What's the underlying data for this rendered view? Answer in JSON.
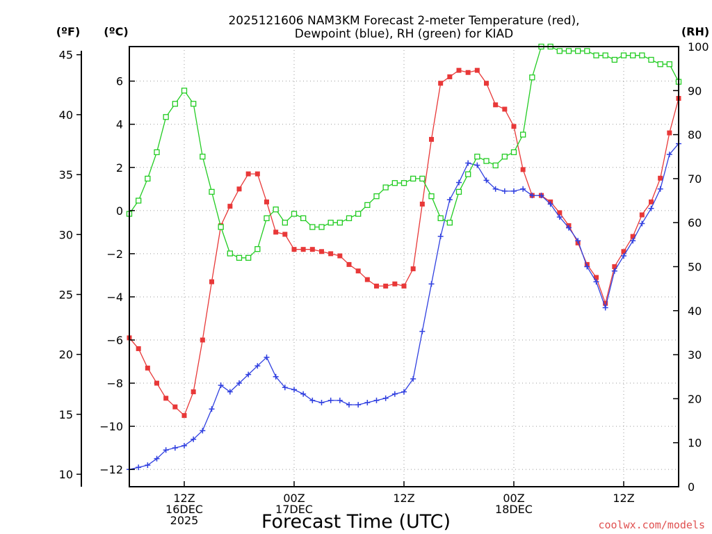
{
  "chart_data": {
    "type": "line",
    "title_line1": "2025121606 NAM3KM Forecast 2-meter Temperature (red),",
    "title_line2": "Dewpoint (blue), RH (green) for KIAD",
    "xlabel": "Forecast Time (UTC)",
    "credit": "coolwx.com/models",
    "unit_f": "(ºF)",
    "unit_c": "(ºC)",
    "unit_rh": "(RH)",
    "x_hours_start": 6,
    "x_hours_end": 66,
    "c_range": [
      -12.8,
      7.6
    ],
    "f_ticks": [
      10,
      15,
      20,
      25,
      30,
      35,
      40,
      45
    ],
    "c_ticks": [
      -12,
      -10,
      -8,
      -6,
      -4,
      -2,
      0,
      2,
      4,
      6
    ],
    "rh_ticks": [
      0,
      10,
      20,
      30,
      40,
      50,
      60,
      70,
      80,
      90,
      100
    ],
    "c_tick_labels": [
      "−12",
      "−10",
      "−8",
      "−6",
      "−4",
      "−2",
      "0",
      "2",
      "4",
      "6"
    ],
    "x_ticks": [
      {
        "hour": 12,
        "lines": [
          "12Z",
          "16DEC",
          "2025"
        ]
      },
      {
        "hour": 24,
        "lines": [
          "00Z",
          "17DEC"
        ]
      },
      {
        "hour": 36,
        "lines": [
          "12Z"
        ]
      },
      {
        "hour": 48,
        "lines": [
          "00Z",
          "18DEC"
        ]
      },
      {
        "hour": 60,
        "lines": [
          "12Z"
        ]
      }
    ],
    "series": [
      {
        "name": "Temperature",
        "color": "#e83838",
        "marker": "filled-square",
        "axis": "c",
        "values": [
          -5.9,
          -6.4,
          -7.3,
          -8.0,
          -8.7,
          -9.1,
          -9.5,
          -8.4,
          -6.0,
          -3.3,
          -0.7,
          0.2,
          1.0,
          1.7,
          1.7,
          0.4,
          -1.0,
          -1.1,
          -1.8,
          -1.8,
          -1.8,
          -1.9,
          -2.0,
          -2.1,
          -2.5,
          -2.8,
          -3.2,
          -3.5,
          -3.5,
          -3.4,
          -3.5,
          -2.7,
          0.3,
          3.3,
          5.9,
          6.2,
          6.5,
          6.4,
          6.5,
          5.9,
          4.9,
          4.7,
          3.9,
          1.9,
          0.7,
          0.7,
          0.4,
          -0.1,
          -0.7,
          -1.5,
          -2.5,
          -3.1,
          -4.3,
          -2.6,
          -1.9,
          -1.2,
          -0.2,
          0.4,
          1.5,
          3.6,
          5.2
        ]
      },
      {
        "name": "Dewpoint",
        "color": "#2f3fe0",
        "marker": "plus",
        "axis": "c",
        "values": [
          -12.0,
          -11.9,
          -11.8,
          -11.5,
          -11.1,
          -11.0,
          -10.9,
          -10.6,
          -10.2,
          -9.2,
          -8.1,
          -8.4,
          -8.0,
          -7.6,
          -7.2,
          -6.8,
          -7.7,
          -8.2,
          -8.3,
          -8.5,
          -8.8,
          -8.9,
          -8.8,
          -8.8,
          -9.0,
          -9.0,
          -8.9,
          -8.8,
          -8.7,
          -8.5,
          -8.4,
          -7.8,
          -5.6,
          -3.4,
          -1.2,
          0.5,
          1.3,
          2.2,
          2.1,
          1.4,
          1.0,
          0.9,
          0.9,
          1.0,
          0.7,
          0.7,
          0.3,
          -0.3,
          -0.8,
          -1.4,
          -2.6,
          -3.3,
          -4.5,
          -2.8,
          -2.1,
          -1.4,
          -0.6,
          0.1,
          1.0,
          2.6,
          3.1
        ]
      },
      {
        "name": "RH",
        "color": "#22cc22",
        "marker": "open-square",
        "axis": "rh",
        "values": [
          62,
          65,
          70,
          76,
          84,
          87,
          90,
          87,
          75,
          67,
          59,
          53,
          52,
          52,
          54,
          61,
          63,
          60,
          62,
          61,
          59,
          59,
          60,
          60,
          61,
          62,
          64,
          66,
          68,
          69,
          69,
          70,
          70,
          66,
          61,
          60,
          67,
          71,
          75,
          74,
          73,
          75,
          76,
          80,
          93,
          100,
          100,
          99,
          99,
          99,
          99,
          98,
          98,
          97,
          98,
          98,
          98,
          97,
          96,
          96,
          92
        ]
      }
    ]
  }
}
